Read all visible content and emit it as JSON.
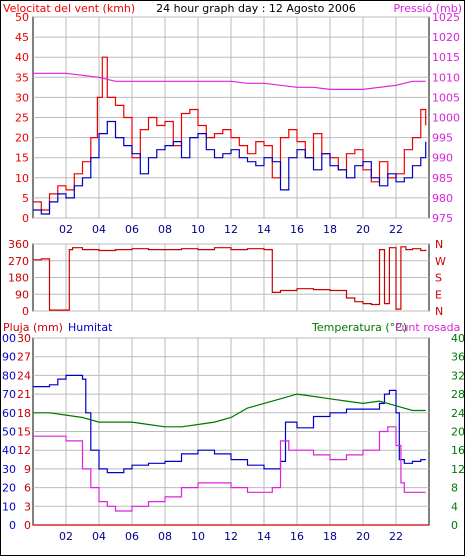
{
  "title": "24 hour graph day : 12 Agosto 2006",
  "colors": {
    "wind": "#ee0000",
    "gust": "#0000bb",
    "pressure": "#dd22dd",
    "direction": "#cc0000",
    "rain": "#cc0000",
    "humidity": "#0000cc",
    "temperature": "#007700",
    "dewpoint": "#dd22dd"
  },
  "chart_data": [
    {
      "type": "line",
      "name": "wind-pressure",
      "left_label": "Velocitat del vent (kmh)",
      "right_label": "Pressió (mb)",
      "x_ticks": [
        "02",
        "04",
        "06",
        "08",
        "10",
        "12",
        "14",
        "16",
        "18",
        "20",
        "22"
      ],
      "x_tick_hours": [
        2,
        4,
        6,
        8,
        10,
        12,
        14,
        16,
        18,
        20,
        22
      ],
      "xlim": [
        0,
        24
      ],
      "ylim_left": [
        0,
        50
      ],
      "yticks_left": [
        0,
        5,
        10,
        15,
        20,
        25,
        30,
        35,
        40,
        45,
        50
      ],
      "ylim_right": [
        975,
        1025
      ],
      "yticks_right": [
        975,
        980,
        985,
        990,
        995,
        1000,
        1005,
        1010,
        1015,
        1020,
        1025
      ],
      "series": [
        {
          "key": "wind",
          "axis": "left",
          "x": [
            0,
            0.5,
            1,
            1.5,
            2,
            2.5,
            3,
            3.5,
            3.9,
            4.2,
            4.5,
            5,
            5.5,
            6,
            6.5,
            7,
            7.5,
            8,
            8.5,
            9,
            9.5,
            10,
            10.5,
            11,
            11.5,
            12,
            12.5,
            13,
            13.5,
            14,
            14.5,
            15,
            15.5,
            16,
            16.5,
            17,
            17.5,
            18,
            18.5,
            19,
            19.5,
            20,
            20.5,
            21,
            21.5,
            22,
            22.5,
            23,
            23.5,
            23.8
          ],
          "values": [
            4,
            2,
            6,
            8,
            7,
            11,
            14,
            20,
            30,
            40,
            30,
            28,
            25,
            15,
            22,
            25,
            23,
            24,
            18,
            26,
            27,
            23,
            20,
            21,
            22,
            20,
            18,
            16,
            19,
            18,
            10,
            20,
            22,
            19,
            15,
            21,
            16,
            15,
            12,
            16,
            17,
            12,
            9,
            14,
            10,
            11,
            17,
            20,
            27,
            23
          ]
        },
        {
          "key": "gust",
          "axis": "left",
          "x": [
            0,
            0.5,
            1,
            1.5,
            2,
            2.5,
            3,
            3.5,
            4,
            4.5,
            5,
            5.5,
            6,
            6.5,
            7,
            7.5,
            8,
            8.5,
            9,
            9.5,
            10,
            10.5,
            11,
            11.5,
            12,
            12.5,
            13,
            13.5,
            14,
            14.5,
            15,
            15.5,
            16,
            16.5,
            17,
            17.5,
            18,
            18.5,
            19,
            19.5,
            20,
            20.5,
            21,
            21.5,
            22,
            22.5,
            23,
            23.5,
            23.8
          ],
          "values": [
            2,
            1,
            4,
            6,
            5,
            8,
            10,
            15,
            21,
            24,
            20,
            18,
            16,
            11,
            15,
            17,
            18,
            19,
            15,
            20,
            21,
            17,
            15,
            16,
            17,
            15,
            14,
            13,
            15,
            14,
            7,
            15,
            17,
            15,
            12,
            16,
            13,
            12,
            10,
            13,
            14,
            10,
            8,
            11,
            9,
            10,
            13,
            15,
            19
          ]
        },
        {
          "key": "pressure",
          "axis": "right",
          "x": [
            0,
            1,
            2,
            3,
            4,
            5,
            6,
            7,
            8,
            9,
            10,
            11,
            12,
            13,
            14,
            15,
            16,
            17,
            18,
            19,
            20,
            21,
            22,
            23,
            23.8
          ],
          "values": [
            1011,
            1011,
            1011,
            1010.5,
            1010,
            1009,
            1009,
            1009,
            1009,
            1009,
            1009,
            1009,
            1009,
            1008.5,
            1008.5,
            1008,
            1007.5,
            1007.5,
            1007,
            1007,
            1007,
            1007.5,
            1008,
            1009,
            1009
          ]
        }
      ]
    },
    {
      "type": "line",
      "name": "wind-direction",
      "left_label": "",
      "right_ticks": [
        "N",
        "W",
        "S",
        "E",
        "N"
      ],
      "xlim": [
        0,
        24
      ],
      "ylim_left": [
        0,
        360
      ],
      "yticks_left": [
        0,
        90,
        180,
        270,
        360
      ],
      "series": [
        {
          "key": "direction",
          "axis": "left",
          "x": [
            0,
            0.5,
            0.9,
            1,
            2,
            2.2,
            2.4,
            3,
            4,
            5,
            6,
            7,
            8,
            9,
            10,
            11,
            12,
            13,
            14,
            14.5,
            15,
            16,
            17,
            18,
            19,
            19.5,
            20,
            20.5,
            21,
            21.3,
            21.6,
            22,
            22.3,
            22.6,
            23,
            23.5,
            23.8
          ],
          "values": [
            275,
            280,
            280,
            5,
            5,
            330,
            340,
            330,
            325,
            330,
            335,
            330,
            330,
            335,
            330,
            340,
            330,
            335,
            330,
            100,
            110,
            120,
            115,
            110,
            70,
            50,
            40,
            35,
            330,
            40,
            340,
            10,
            345,
            330,
            335,
            325,
            330
          ]
        }
      ]
    },
    {
      "type": "line",
      "name": "humidity-temperature",
      "left_label_1": "Pluja (mm)",
      "left_label_2": "Humitat",
      "right_label_1": "Temperatura (°C)",
      "right_label_2": "Punt rosada",
      "xlim": [
        0,
        24
      ],
      "ylim_humidity": [
        0,
        100
      ],
      "yticks_humidity": [
        0,
        10,
        20,
        30,
        40,
        50,
        60,
        70,
        80,
        90,
        100
      ],
      "ylim_rain": [
        0,
        30
      ],
      "yticks_rain": [
        0,
        3,
        6,
        9,
        12,
        15,
        18,
        21,
        24,
        27,
        30
      ],
      "ylim_temp": [
        0,
        40
      ],
      "yticks_temp": [
        0,
        4,
        8,
        12,
        16,
        20,
        24,
        28,
        32,
        36,
        40
      ],
      "series": [
        {
          "key": "humidity",
          "axis": "humidity",
          "x": [
            0,
            0.5,
            1,
            1.5,
            2,
            2.5,
            3,
            3.2,
            3.5,
            4,
            4.5,
            5,
            5.5,
            6,
            7,
            8,
            9,
            10,
            11,
            12,
            13,
            14,
            14.5,
            15,
            15.3,
            16,
            17,
            18,
            19,
            20,
            21,
            21.3,
            21.6,
            22,
            22.2,
            22.5,
            23,
            23.5,
            23.8
          ],
          "values": [
            74,
            74,
            75,
            78,
            80,
            80,
            78,
            60,
            40,
            30,
            28,
            28,
            30,
            32,
            33,
            34,
            38,
            40,
            38,
            35,
            32,
            30,
            30,
            34,
            55,
            52,
            58,
            60,
            62,
            62,
            65,
            70,
            72,
            60,
            35,
            33,
            34,
            35,
            35
          ]
        },
        {
          "key": "rain",
          "axis": "rain",
          "x": [
            0,
            24
          ],
          "values": [
            0,
            0
          ]
        },
        {
          "key": "temperature",
          "axis": "temp",
          "x": [
            0,
            1,
            2,
            3,
            4,
            5,
            6,
            7,
            8,
            9,
            10,
            11,
            12,
            13,
            14,
            15,
            16,
            17,
            18,
            19,
            20,
            21,
            22,
            23,
            23.8
          ],
          "values": [
            24,
            24,
            23.5,
            23,
            22,
            22,
            22,
            21.5,
            21,
            21,
            21.5,
            22,
            23,
            25,
            26,
            27,
            28,
            27.5,
            27,
            26.5,
            26,
            26.5,
            25.5,
            24.5,
            24.5
          ]
        },
        {
          "key": "dewpoint",
          "axis": "temp",
          "x": [
            0,
            1,
            2,
            2.5,
            3,
            3.5,
            4,
            4.5,
            5,
            6,
            7,
            8,
            9,
            10,
            11,
            12,
            13,
            14,
            14.5,
            15,
            15.5,
            16,
            17,
            18,
            19,
            20,
            21,
            21.5,
            22,
            22.3,
            22.5,
            23,
            23.8
          ],
          "values": [
            19,
            19,
            18,
            18,
            12,
            8,
            5,
            4,
            3,
            4,
            5,
            6,
            8,
            9,
            9,
            8,
            7,
            7,
            8,
            18,
            16,
            16,
            15,
            14,
            15,
            16,
            20,
            21,
            17,
            9,
            7,
            7,
            7
          ]
        }
      ]
    }
  ]
}
